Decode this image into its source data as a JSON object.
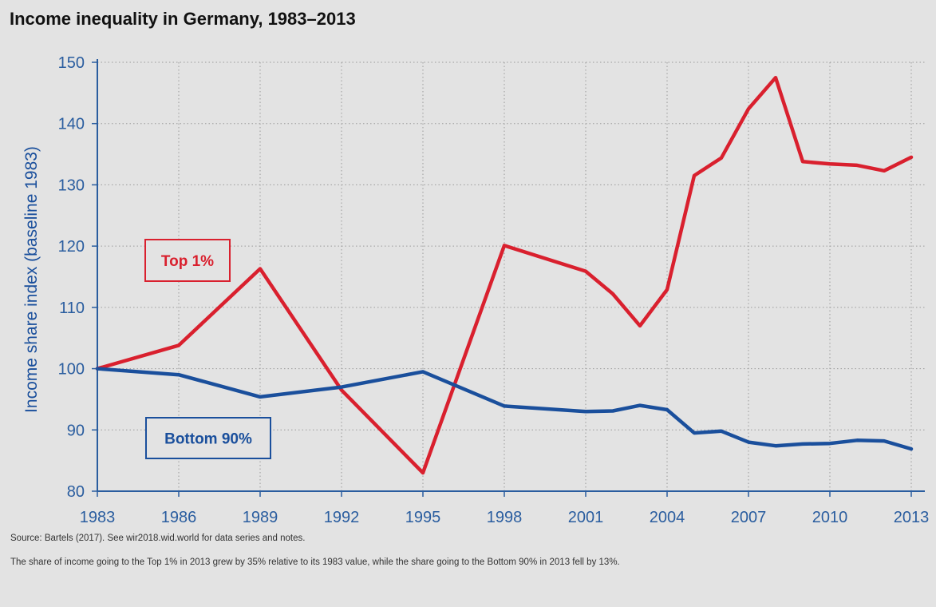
{
  "header": {
    "title": "Income inequality in Germany, 1983–2013"
  },
  "chart_data": {
    "type": "line",
    "title": "Income inequality in Germany, 1983–2013",
    "ylabel": "Income share index (baseline 1983)",
    "xlabel": "",
    "xlim": [
      1983,
      2013.5
    ],
    "ylim": [
      80,
      150
    ],
    "x_ticks": [
      1983,
      1986,
      1989,
      1992,
      1995,
      1998,
      2001,
      2004,
      2007,
      2010,
      2013
    ],
    "y_ticks": [
      80,
      90,
      100,
      110,
      120,
      130,
      140,
      150
    ],
    "grid": true,
    "series": [
      {
        "name": "Top 1%",
        "color": "#d9202e",
        "x": [
          1983,
          1986,
          1989,
          1992,
          1995,
          1998,
          2001,
          2002,
          2003,
          2004,
          2005,
          2006,
          2007,
          2008,
          2009,
          2010,
          2011,
          2012,
          2013
        ],
        "values": [
          100,
          103.8,
          116.3,
          96.5,
          83,
          120.1,
          115.9,
          112.2,
          107,
          112.9,
          131.5,
          134.4,
          142.4,
          147.5,
          133.8,
          133.4,
          133.2,
          132.3,
          134.5
        ]
      },
      {
        "name": "Bottom 90%",
        "color": "#1a4f9c",
        "x": [
          1983,
          1986,
          1989,
          1992,
          1995,
          1998,
          2001,
          2002,
          2003,
          2004,
          2005,
          2006,
          2007,
          2008,
          2009,
          2010,
          2011,
          2012,
          2013
        ],
        "values": [
          100,
          99,
          95.4,
          97,
          99.5,
          93.9,
          93,
          93.1,
          94,
          93.3,
          89.5,
          89.8,
          88,
          87.4,
          87.7,
          87.8,
          88.3,
          88.2,
          86.9
        ]
      }
    ]
  },
  "notes": {
    "source": "Source: Bartels (2017). See wir2018.wid.world for data series and notes.",
    "summary": "The share of income going to the Top 1% in 2013 grew by 35% relative to its 1983 value, while the share going to the Bottom 90% in 2013 fell by 13%."
  }
}
